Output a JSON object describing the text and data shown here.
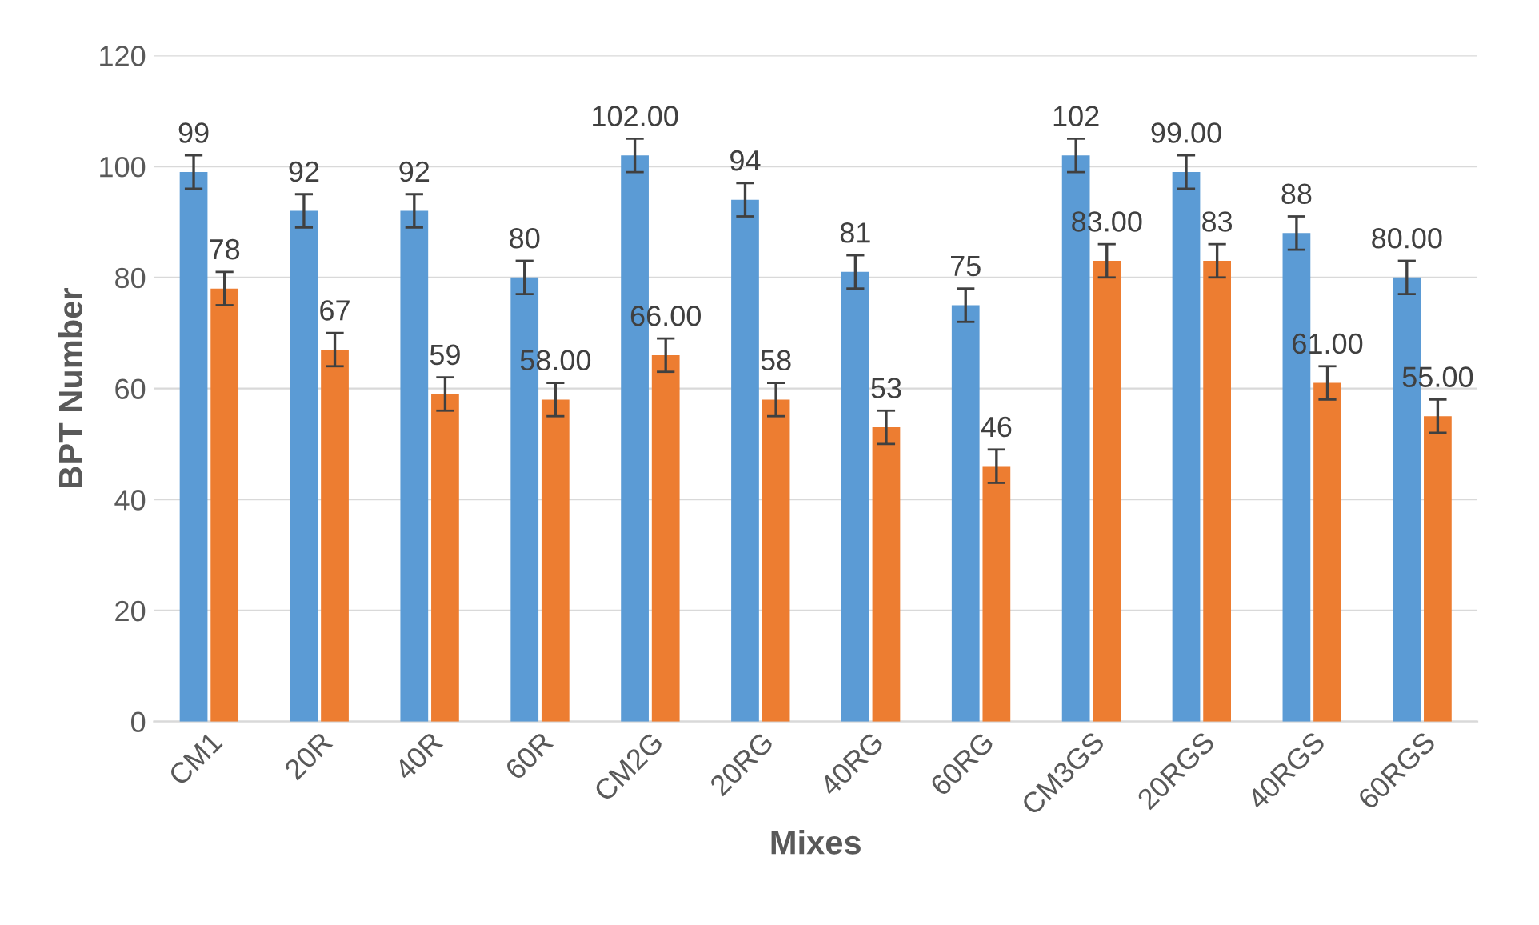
{
  "chart_data": {
    "type": "bar",
    "xlabel": "Mixes",
    "ylabel": "BPT Number",
    "categories": [
      "CM1",
      "20R",
      "40R",
      "60R",
      "CM2G",
      "20RG",
      "40RG",
      "60RG",
      "CM3GS",
      "20RGS",
      "40RGS",
      "60RGS"
    ],
    "series": [
      {
        "color": "#5b9bd5",
        "values": [
          99,
          92,
          92,
          80,
          102,
          94,
          81,
          75,
          102,
          99,
          88,
          80
        ],
        "errors": [
          3,
          3,
          3,
          3,
          3,
          3,
          3,
          3,
          3,
          3,
          3,
          3
        ],
        "value_labels": [
          "99",
          "92",
          "92",
          "80",
          "102.00",
          "94",
          "81",
          "75",
          "102",
          "99.00",
          "88",
          "80.00"
        ]
      },
      {
        "color": "#ed7d31",
        "values": [
          78,
          67,
          59,
          58,
          66,
          58,
          53,
          46,
          83,
          83,
          61,
          55
        ],
        "errors": [
          3,
          3,
          3,
          3,
          3,
          3,
          3,
          3,
          3,
          3,
          3,
          3
        ],
        "value_labels": [
          "78",
          "67",
          "59",
          "58.00",
          "66.00",
          "58",
          "53",
          "46",
          "83.00",
          "83",
          "61.00",
          "55.00"
        ]
      }
    ],
    "ylim": [
      0,
      120
    ],
    "yticks": [
      0,
      20,
      40,
      60,
      80,
      100,
      120
    ],
    "grid": "y"
  }
}
